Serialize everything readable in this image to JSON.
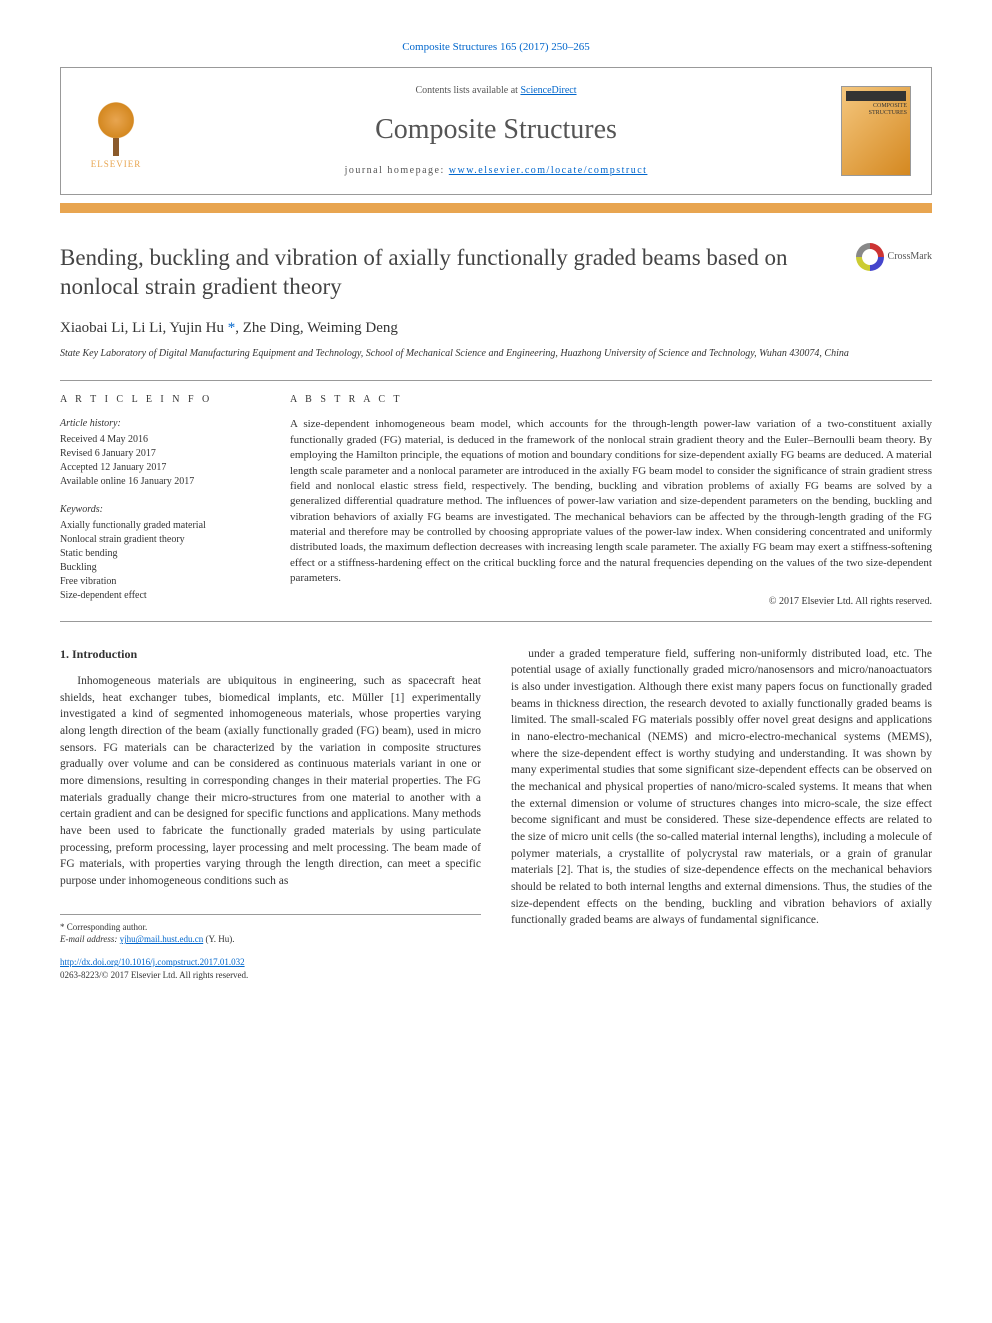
{
  "journal_ref": "Composite Structures 165 (2017) 250–265",
  "header": {
    "contents_prefix": "Contents lists available at ",
    "contents_link": "ScienceDirect",
    "journal_name": "Composite Structures",
    "homepage_prefix": "journal homepage: ",
    "homepage_url": "www.elsevier.com/locate/compstruct",
    "publisher": "ELSEVIER",
    "cover_label": "COMPOSITE\nSTRUCTURES"
  },
  "crossmark_label": "CrossMark",
  "title": "Bending, buckling and vibration of axially functionally graded beams based on nonlocal strain gradient theory",
  "authors": "Xiaobai Li, Li Li, Yujin Hu",
  "authors_corr_mark": "*",
  "authors_tail": ", Zhe Ding, Weiming Deng",
  "affiliation": "State Key Laboratory of Digital Manufacturing Equipment and Technology, School of Mechanical Science and Engineering, Huazhong University of Science and Technology, Wuhan 430074, China",
  "info": {
    "section_label": "A R T I C L E   I N F O",
    "history_label": "Article history:",
    "history": [
      "Received 4 May 2016",
      "Revised 6 January 2017",
      "Accepted 12 January 2017",
      "Available online 16 January 2017"
    ],
    "keywords_label": "Keywords:",
    "keywords": [
      "Axially functionally graded material",
      "Nonlocal strain gradient theory",
      "Static bending",
      "Buckling",
      "Free vibration",
      "Size-dependent effect"
    ]
  },
  "abstract": {
    "section_label": "A B S T R A C T",
    "text": "A size-dependent inhomogeneous beam model, which accounts for the through-length power-law variation of a two-constituent axially functionally graded (FG) material, is deduced in the framework of the nonlocal strain gradient theory and the Euler–Bernoulli beam theory. By employing the Hamilton principle, the equations of motion and boundary conditions for size-dependent axially FG beams are deduced. A material length scale parameter and a nonlocal parameter are introduced in the axially FG beam model to consider the significance of strain gradient stress field and nonlocal elastic stress field, respectively. The bending, buckling and vibration problems of axially FG beams are solved by a generalized differential quadrature method. The influences of power-law variation and size-dependent parameters on the bending, buckling and vibration behaviors of axially FG beams are investigated. The mechanical behaviors can be affected by the through-length grading of the FG material and therefore may be controlled by choosing appropriate values of the power-law index. When considering concentrated and uniformly distributed loads, the maximum deflection decreases with increasing length scale parameter. The axially FG beam may exert a stiffness-softening effect or a stiffness-hardening effect on the critical buckling force and the natural frequencies depending on the values of the two size-dependent parameters.",
    "copyright": "© 2017 Elsevier Ltd. All rights reserved."
  },
  "body": {
    "section_heading": "1. Introduction",
    "col1": "Inhomogeneous materials are ubiquitous in engineering, such as spacecraft heat shields, heat exchanger tubes, biomedical implants, etc. Müller [1] experimentally investigated a kind of segmented inhomogeneous materials, whose properties varying along length direction of the beam (axially functionally graded (FG) beam), used in micro sensors. FG materials can be characterized by the variation in composite structures gradually over volume and can be considered as continuous materials variant in one or more dimensions, resulting in corresponding changes in their material properties. The FG materials gradually change their micro-structures from one material to another with a certain gradient and can be designed for specific functions and applications. Many methods have been used to fabricate the functionally graded materials by using particulate processing, preform processing, layer processing and melt processing. The beam made of FG materials, with properties varying through the length direction, can meet a specific purpose under inhomogeneous conditions such as",
    "ref1": "[1]",
    "col2": "under a graded temperature field, suffering non-uniformly distributed load, etc. The potential usage of axially functionally graded micro/nanosensors and micro/nanoactuators is also under investigation. Although there exist many papers focus on functionally graded beams in thickness direction, the research devoted to axially functionally graded beams is limited. The small-scaled FG materials possibly offer novel great designs and applications in nano-electro-mechanical (NEMS) and micro-electro-mechanical systems (MEMS), where the size-dependent effect is worthy studying and understanding. It was shown by many experimental studies that some significant size-dependent effects can be observed on the mechanical and physical properties of nano/micro-scaled systems. It means that when the external dimension or volume of structures changes into micro-scale, the size effect become significant and must be considered. These size-dependence effects are related to the size of micro unit cells (the so-called material internal lengths), including a molecule of polymer materials, a crystallite of polycrystal raw materials, or a grain of granular materials [2]. That is, the studies of size-dependence effects on the mechanical behaviors should be related to both internal lengths and external dimensions. Thus, the studies of the size-dependent effects on the bending, buckling and vibration behaviors of axially functionally graded beams are always of fundamental significance.",
    "ref2": "[2]"
  },
  "footer": {
    "corr_label": "* Corresponding author.",
    "email_label": "E-mail address: ",
    "email": "yjhu@mail.hust.edu.cn",
    "email_name": " (Y. Hu).",
    "doi": "http://dx.doi.org/10.1016/j.compstruct.2017.01.032",
    "issn_line": "0263-8223/© 2017 Elsevier Ltd. All rights reserved."
  }
}
